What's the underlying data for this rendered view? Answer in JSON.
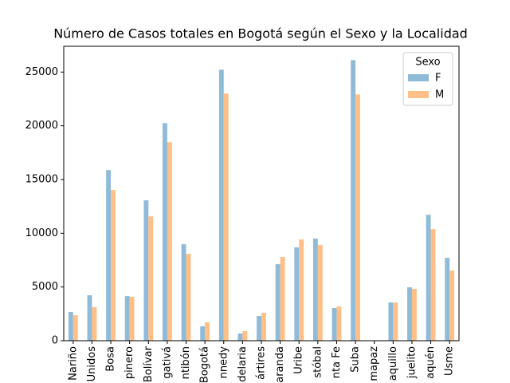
{
  "chart_data": {
    "type": "bar",
    "title": "Número de Casos totales en Bogotá según el Sexo y la Localidad",
    "categories": [
      "Nariño",
      "Unidos",
      "Bosa",
      "pinero",
      "Bolívar",
      "gativá",
      "ntibón",
      "Bogotá",
      "nnedy",
      "ndelaria",
      "ártires",
      "aranda",
      "Uribe",
      "stóbal",
      "nta Fe",
      "Suba",
      "mapaz",
      "aquillo",
      "juelito",
      "aquén",
      "Usme"
    ],
    "series": [
      {
        "name": "F",
        "color": "#8fbbd9",
        "values": [
          2670,
          4230,
          15880,
          4150,
          13060,
          20250,
          8980,
          1340,
          25220,
          670,
          2300,
          7120,
          8680,
          9500,
          3040,
          26110,
          10,
          3560,
          4970,
          11720,
          7720
        ]
      },
      {
        "name": "M",
        "color": "#ffbf86",
        "values": [
          2370,
          3120,
          14020,
          4080,
          11570,
          18470,
          8090,
          1710,
          23000,
          890,
          2600,
          7790,
          9420,
          8900,
          3190,
          22920,
          15,
          3560,
          4820,
          10390,
          6530
        ]
      }
    ],
    "legend_title": "Sexo",
    "legend_position": "upper right",
    "ylim": [
      0,
      27400
    ],
    "yticks": [
      0,
      5000,
      10000,
      15000,
      20000,
      25000
    ],
    "grid": false
  }
}
